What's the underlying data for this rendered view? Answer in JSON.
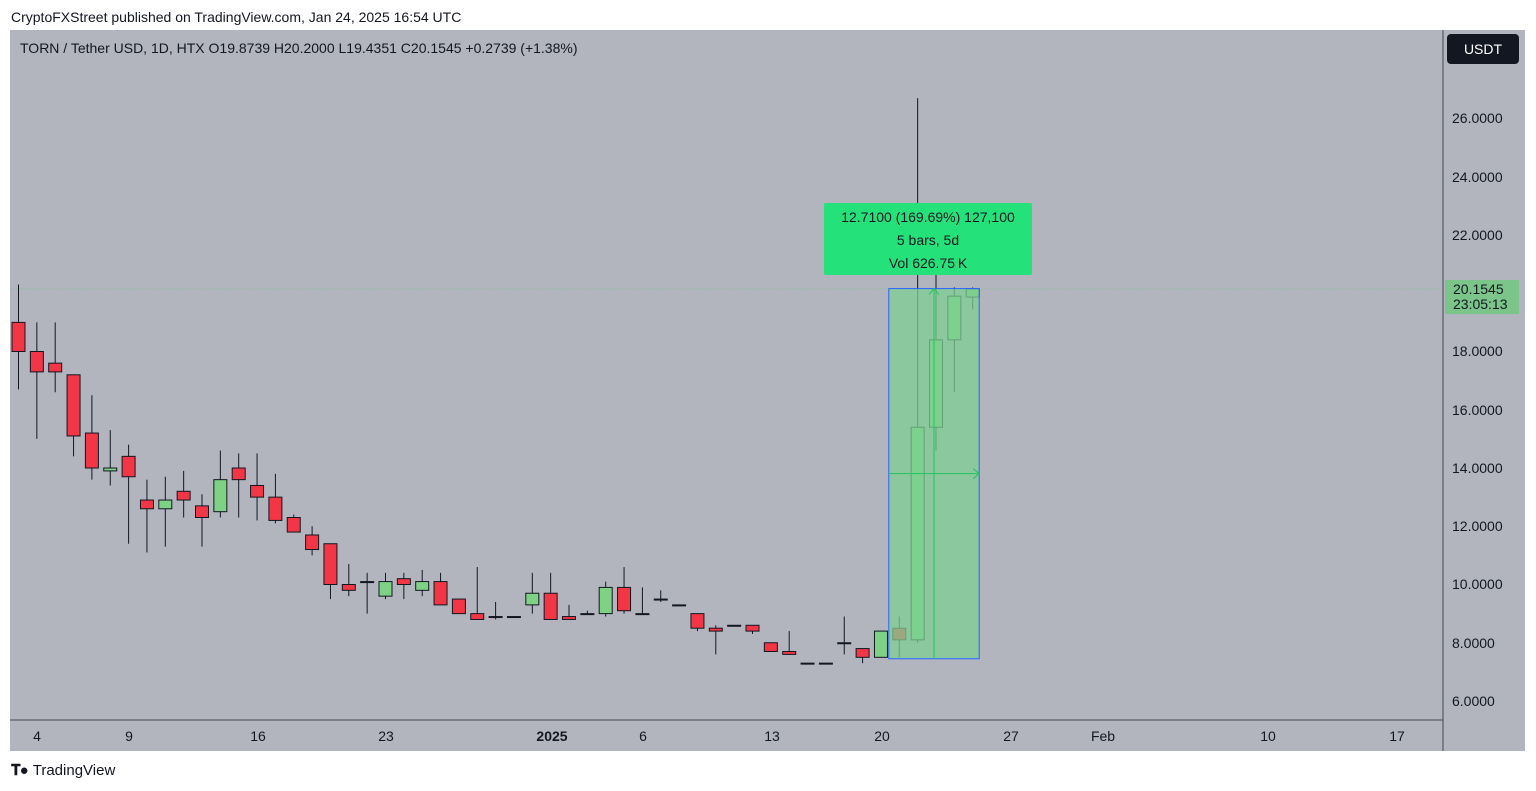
{
  "header": {
    "publisher_line": "CryptoFXStreet published on TradingView.com, Jan 24, 2025 16:54 UTC"
  },
  "symbol": {
    "info_line": "TORN / Tether USD, 1D, HTX  O19.8739  H20.2000  L19.4351  C20.1545  +0.2739 (+1.38%)"
  },
  "currency_badge": "USDT",
  "price_axis": {
    "labels": [
      "26.0000",
      "24.0000",
      "22.0000",
      "18.0000",
      "16.0000",
      "14.0000",
      "12.0000",
      "10.0000",
      "8.0000",
      "6.0000"
    ]
  },
  "last_price": {
    "price": "20.1545",
    "countdown": "23:05:13"
  },
  "measure": {
    "line1": "12.7100 (169.69%) 127,100",
    "line2": "5 bars, 5d",
    "line3": "Vol 626.75 K"
  },
  "footer": {
    "logo_text": "TradingView"
  },
  "colors": {
    "up": "#7ed185",
    "down": "#f23645",
    "background": "#b2b5be",
    "measure_fill": "#7fcf93",
    "measure_border": "#2962ff",
    "measure_label": "#25e17a",
    "last_price": "#7cc58a"
  },
  "chart_data": {
    "type": "candlestick",
    "symbol": "TORN / Tether USD",
    "interval": "1D",
    "exchange": "HTX",
    "ylim": [
      5.3,
      28.2
    ],
    "grid": false,
    "x_tick_labels": [
      "4",
      "9",
      "16",
      "23",
      "2025",
      "6",
      "13",
      "20",
      "27",
      "Feb",
      "10",
      "17"
    ],
    "candles": [
      {
        "o": 19.0,
        "h": 20.3,
        "l": 16.7,
        "c": 18.0
      },
      {
        "o": 18.0,
        "h": 19.0,
        "l": 15.0,
        "c": 17.3
      },
      {
        "o": 17.6,
        "h": 19.0,
        "l": 16.6,
        "c": 17.3
      },
      {
        "o": 17.2,
        "h": 17.2,
        "l": 14.4,
        "c": 15.1
      },
      {
        "o": 15.2,
        "h": 16.5,
        "l": 13.6,
        "c": 14.0
      },
      {
        "o": 13.9,
        "h": 15.3,
        "l": 13.4,
        "c": 14.0
      },
      {
        "o": 14.4,
        "h": 14.8,
        "l": 11.4,
        "c": 13.7
      },
      {
        "o": 12.9,
        "h": 13.6,
        "l": 11.1,
        "c": 12.6
      },
      {
        "o": 12.6,
        "h": 13.7,
        "l": 11.3,
        "c": 12.9
      },
      {
        "o": 13.2,
        "h": 13.9,
        "l": 12.3,
        "c": 12.9
      },
      {
        "o": 12.7,
        "h": 13.1,
        "l": 11.3,
        "c": 12.3
      },
      {
        "o": 12.5,
        "h": 14.6,
        "l": 12.3,
        "c": 13.6
      },
      {
        "o": 14.0,
        "h": 14.5,
        "l": 12.3,
        "c": 13.6
      },
      {
        "o": 13.4,
        "h": 14.5,
        "l": 12.2,
        "c": 13.0
      },
      {
        "o": 13.0,
        "h": 13.8,
        "l": 12.1,
        "c": 12.2
      },
      {
        "o": 12.3,
        "h": 12.4,
        "l": 11.9,
        "c": 11.8
      },
      {
        "o": 11.7,
        "h": 12.0,
        "l": 11.0,
        "c": 11.2
      },
      {
        "o": 11.4,
        "h": 11.4,
        "l": 9.5,
        "c": 10.0
      },
      {
        "o": 10.0,
        "h": 10.7,
        "l": 9.6,
        "c": 9.8
      },
      {
        "o": 10.1,
        "h": 10.4,
        "l": 9.0,
        "c": 10.1
      },
      {
        "o": 9.6,
        "h": 10.4,
        "l": 9.5,
        "c": 10.1
      },
      {
        "o": 10.2,
        "h": 10.4,
        "l": 9.5,
        "c": 10.0
      },
      {
        "o": 9.8,
        "h": 10.5,
        "l": 9.6,
        "c": 10.1
      },
      {
        "o": 10.1,
        "h": 10.4,
        "l": 9.3,
        "c": 9.3
      },
      {
        "o": 9.5,
        "h": 9.5,
        "l": 9.0,
        "c": 9.0
      },
      {
        "o": 9.0,
        "h": 10.6,
        "l": 8.8,
        "c": 8.8
      },
      {
        "o": 8.9,
        "h": 9.4,
        "l": 8.8,
        "c": 8.9
      },
      {
        "o": 8.9,
        "h": 8.9,
        "l": 8.9,
        "c": 8.9
      },
      {
        "o": 9.3,
        "h": 10.4,
        "l": 9.0,
        "c": 9.7
      },
      {
        "o": 9.7,
        "h": 10.4,
        "l": 8.8,
        "c": 8.8
      },
      {
        "o": 8.9,
        "h": 9.3,
        "l": 8.8,
        "c": 8.8
      },
      {
        "o": 9.0,
        "h": 9.1,
        "l": 9.0,
        "c": 9.0
      },
      {
        "o": 9.0,
        "h": 10.1,
        "l": 8.9,
        "c": 9.9
      },
      {
        "o": 9.9,
        "h": 10.6,
        "l": 9.0,
        "c": 9.1
      },
      {
        "o": 9.0,
        "h": 9.9,
        "l": 9.0,
        "c": 9.0
      },
      {
        "o": 9.5,
        "h": 9.8,
        "l": 9.4,
        "c": 9.5
      },
      {
        "o": 9.3,
        "h": 9.3,
        "l": 9.3,
        "c": 9.3
      },
      {
        "o": 9.0,
        "h": 9.0,
        "l": 8.4,
        "c": 8.5
      },
      {
        "o": 8.5,
        "h": 8.6,
        "l": 7.6,
        "c": 8.4
      },
      {
        "o": 8.6,
        "h": 8.6,
        "l": 8.6,
        "c": 8.6
      },
      {
        "o": 8.6,
        "h": 8.6,
        "l": 8.3,
        "c": 8.4
      },
      {
        "o": 8.0,
        "h": 8.0,
        "l": 7.7,
        "c": 7.7
      },
      {
        "o": 7.7,
        "h": 8.4,
        "l": 7.6,
        "c": 7.6
      },
      {
        "o": 7.3,
        "h": 7.3,
        "l": 7.3,
        "c": 7.3
      },
      {
        "o": 7.3,
        "h": 7.3,
        "l": 7.3,
        "c": 7.3
      },
      {
        "o": 8.0,
        "h": 8.9,
        "l": 7.6,
        "c": 8.0
      },
      {
        "o": 7.8,
        "h": 7.8,
        "l": 7.3,
        "c": 7.5
      },
      {
        "o": 7.5,
        "h": 8.4,
        "l": 7.5,
        "c": 8.4
      },
      {
        "o": 8.5,
        "h": 8.9,
        "l": 7.5,
        "c": 8.1
      },
      {
        "o": 8.1,
        "h": 26.7,
        "l": 8.0,
        "c": 15.4
      },
      {
        "o": 15.4,
        "h": 20.7,
        "l": 14.6,
        "c": 18.4
      },
      {
        "o": 18.4,
        "h": 20.2,
        "l": 16.6,
        "c": 19.9
      },
      {
        "o": 19.87,
        "h": 20.2,
        "l": 19.44,
        "c": 20.15
      }
    ],
    "last_close": 20.1545,
    "measure_range": {
      "from": 7.45,
      "to": 20.16,
      "change": 12.71,
      "percent": 169.69,
      "bars": 5
    }
  }
}
